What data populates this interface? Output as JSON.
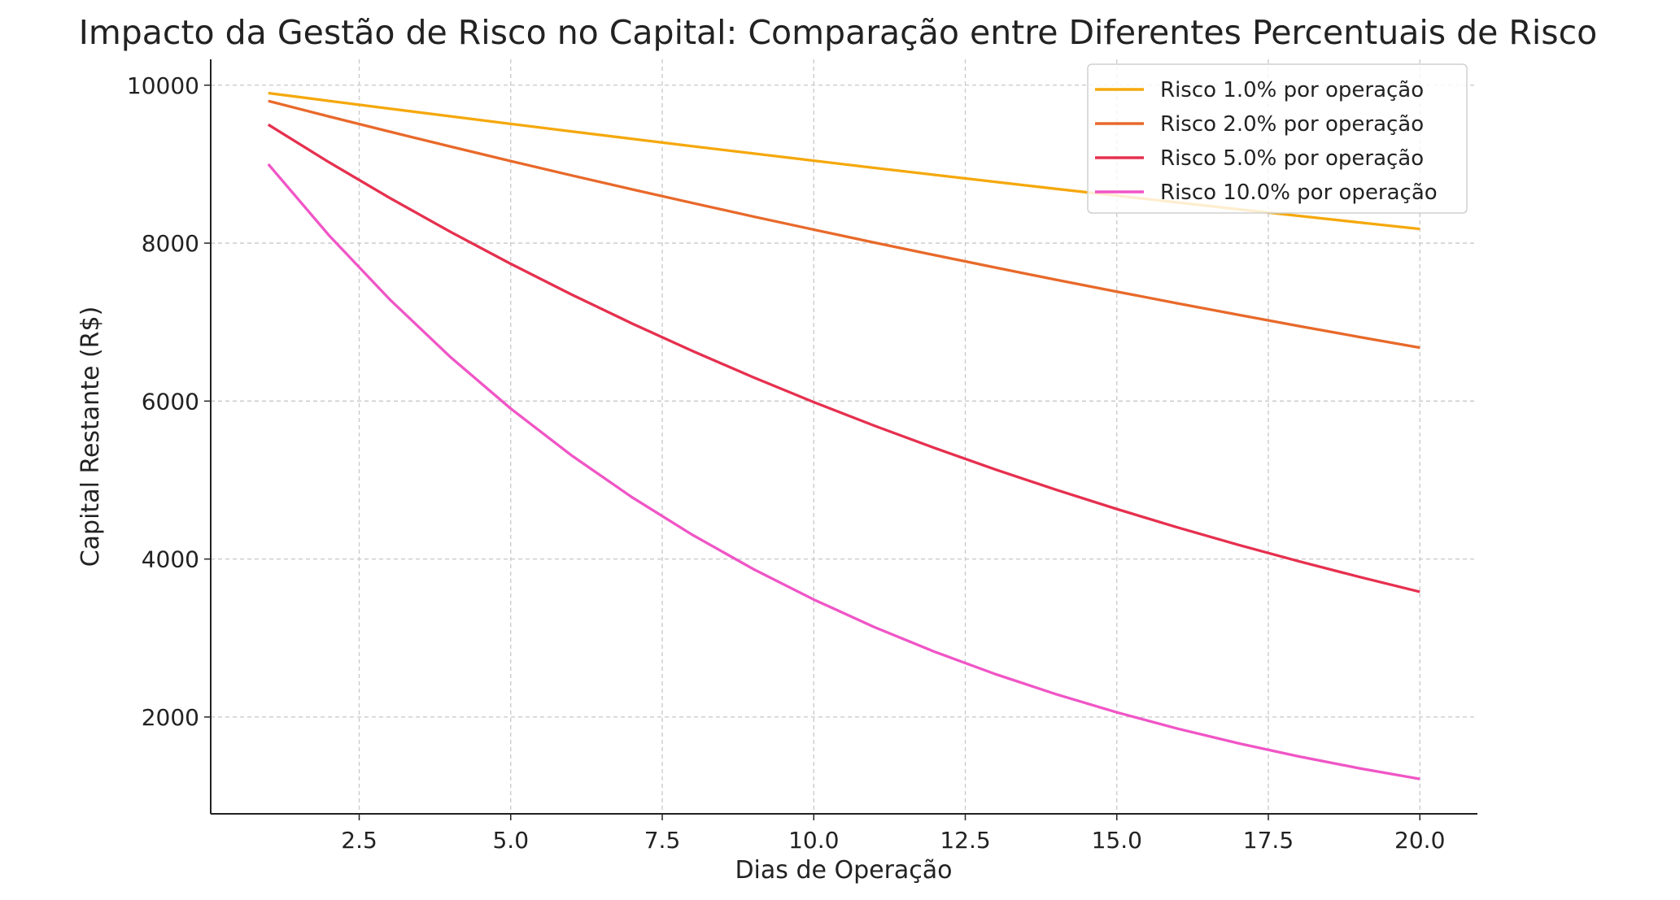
{
  "chart_data": {
    "type": "line",
    "title": "Impacto da Gestão de Risco no Capital: Comparação entre Diferentes Percentuais de Risco",
    "xlabel": "Dias de Operação",
    "ylabel": "Capital Restante (R$)",
    "xlim": [
      0.05,
      20.95
    ],
    "ylim": [
      774,
      10327
    ],
    "xticks": [
      2.5,
      5.0,
      7.5,
      10.0,
      12.5,
      15.0,
      17.5,
      20.0
    ],
    "xtick_labels": [
      "2.5",
      "5.0",
      "7.5",
      "10.0",
      "12.5",
      "15.0",
      "17.5",
      "20.0"
    ],
    "yticks": [
      2000,
      4000,
      6000,
      8000,
      10000
    ],
    "ytick_labels": [
      "2000",
      "4000",
      "6000",
      "8000",
      "10000"
    ],
    "grid": true,
    "legend_position": "top-right",
    "x": [
      1,
      2,
      3,
      4,
      5,
      6,
      7,
      8,
      9,
      10,
      11,
      12,
      13,
      14,
      15,
      16,
      17,
      18,
      19,
      20
    ],
    "series": [
      {
        "name": "Risco 1.0% por operação",
        "color": "#F5A80C",
        "values": [
          9900,
          9801,
          9703,
          9606,
          9510,
          9415,
          9321,
          9227,
          9135,
          9044,
          8953,
          8864,
          8775,
          8687,
          8601,
          8515,
          8429,
          8345,
          8262,
          8179
        ]
      },
      {
        "name": "Risco 2.0% por operação",
        "color": "#E8692A",
        "values": [
          9800,
          9604,
          9412,
          9224,
          9039,
          8858,
          8681,
          8508,
          8337,
          8171,
          8007,
          7847,
          7690,
          7536,
          7386,
          7238,
          7093,
          6951,
          6812,
          6676
        ]
      },
      {
        "name": "Risco 5.0% por operação",
        "color": "#E6304F",
        "values": [
          9500,
          9025,
          8574,
          8145,
          7738,
          7351,
          6983,
          6634,
          6302,
          5987,
          5688,
          5404,
          5133,
          4877,
          4633,
          4401,
          4181,
          3972,
          3774,
          3585
        ]
      },
      {
        "name": "Risco 10.0% por operação",
        "color": "#F055C6",
        "values": [
          9000,
          8100,
          7290,
          6561,
          5905,
          5314,
          4783,
          4305,
          3874,
          3487,
          3138,
          2824,
          2542,
          2288,
          2059,
          1853,
          1668,
          1501,
          1351,
          1216
        ]
      }
    ]
  }
}
